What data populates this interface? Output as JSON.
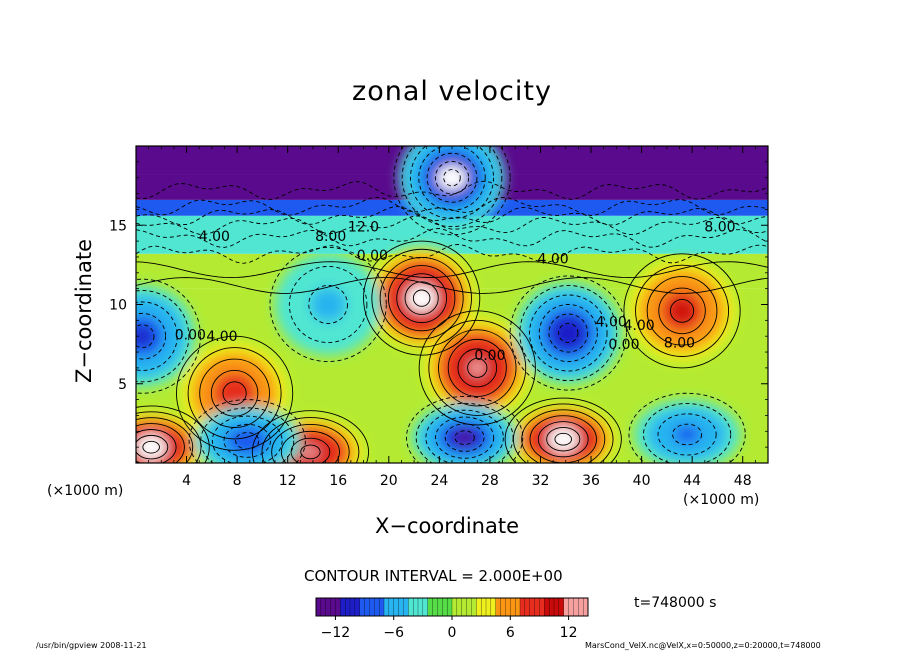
{
  "title": "zonal velocity",
  "xlabel": "X−coordinate",
  "ylabel": "Z−coordinate",
  "xunit_left": "(×1000 m)",
  "xunit_right": "(×1000 m)",
  "contour_interval_text": "CONTOUR INTERVAL = 2.000E+00",
  "time_text": "t=748000 s",
  "footer_left": "/usr/bin/gpview   2008-11-21",
  "footer_right": "MarsCond_VelX.nc@VelX,x=0:50000,z=0:20000,t=748000",
  "chart_data": {
    "type": "heatmap",
    "title": "zonal velocity",
    "xlabel": "X−coordinate",
    "ylabel": "Z−coordinate",
    "x_units": "×1000 m",
    "xlim": [
      0,
      50
    ],
    "ylim": [
      0,
      20
    ],
    "x_ticks": [
      4,
      8,
      12,
      16,
      20,
      24,
      28,
      32,
      36,
      40,
      44,
      48
    ],
    "y_ticks": [
      5,
      10,
      15
    ],
    "colorbar": {
      "ticks": [
        -12,
        -6,
        0,
        6,
        12
      ],
      "range": [
        -14,
        14
      ],
      "colors": [
        "#5a0a8c",
        "#1e1ec8",
        "#1e5af0",
        "#28b4f0",
        "#50e6d2",
        "#55dc46",
        "#b4eb32",
        "#f0f01e",
        "#fa9614",
        "#e62d1e",
        "#c80a0a",
        "#f7a0a0"
      ]
    },
    "contour_interval": 2.0,
    "contour_labels": [
      {
        "text": "4.00",
        "x": 6.2,
        "z": 14.0
      },
      {
        "text": "8.00",
        "x": 15.4,
        "z": 14.0
      },
      {
        "text": "12.0",
        "x": 18.0,
        "z": 14.6
      },
      {
        "text": "0.00",
        "x": 18.7,
        "z": 12.8
      },
      {
        "text": "4.00",
        "x": 33.0,
        "z": 12.6
      },
      {
        "text": "8.00",
        "x": 46.2,
        "z": 14.6
      },
      {
        "text": "0.00",
        "x": 4.3,
        "z": 7.8
      },
      {
        "text": "4.00",
        "x": 6.8,
        "z": 7.7
      },
      {
        "text": "4.00",
        "x": 37.6,
        "z": 8.6
      },
      {
        "text": "0.00",
        "x": 38.6,
        "z": 7.2
      },
      {
        "text": "4.00",
        "x": 39.8,
        "z": 8.4
      },
      {
        "text": "8.00",
        "x": 43.0,
        "z": 7.3
      },
      {
        "text": "0.00",
        "x": 28.0,
        "z": 6.5
      }
    ],
    "features": [
      {
        "sign": "max",
        "x": 22.6,
        "z": 10.4,
        "value": 14
      },
      {
        "sign": "max",
        "x": 27.0,
        "z": 6.0,
        "value": 12
      },
      {
        "sign": "max",
        "x": 43.2,
        "z": 9.6,
        "value": 10
      },
      {
        "sign": "max",
        "x": 7.8,
        "z": 4.4,
        "value": 9
      },
      {
        "sign": "max",
        "x": 33.8,
        "z": 1.5,
        "value": 14
      },
      {
        "sign": "max",
        "x": 1.2,
        "z": 1.0,
        "value": 14
      },
      {
        "sign": "max",
        "x": 13.8,
        "z": 0.7,
        "value": 12
      },
      {
        "sign": "min",
        "x": 34.2,
        "z": 8.2,
        "value": -11
      },
      {
        "sign": "min",
        "x": 0.5,
        "z": 8.0,
        "value": -10
      },
      {
        "sign": "min",
        "x": 15.2,
        "z": 10.0,
        "value": -5
      },
      {
        "sign": "min",
        "x": 26.0,
        "z": 1.6,
        "value": -12
      },
      {
        "sign": "min",
        "x": 8.8,
        "z": 1.4,
        "value": -9
      },
      {
        "sign": "min",
        "x": 43.6,
        "z": 1.8,
        "value": -8
      },
      {
        "sign": "min",
        "x": 25.0,
        "z": 18.0,
        "value": -13
      }
    ]
  }
}
